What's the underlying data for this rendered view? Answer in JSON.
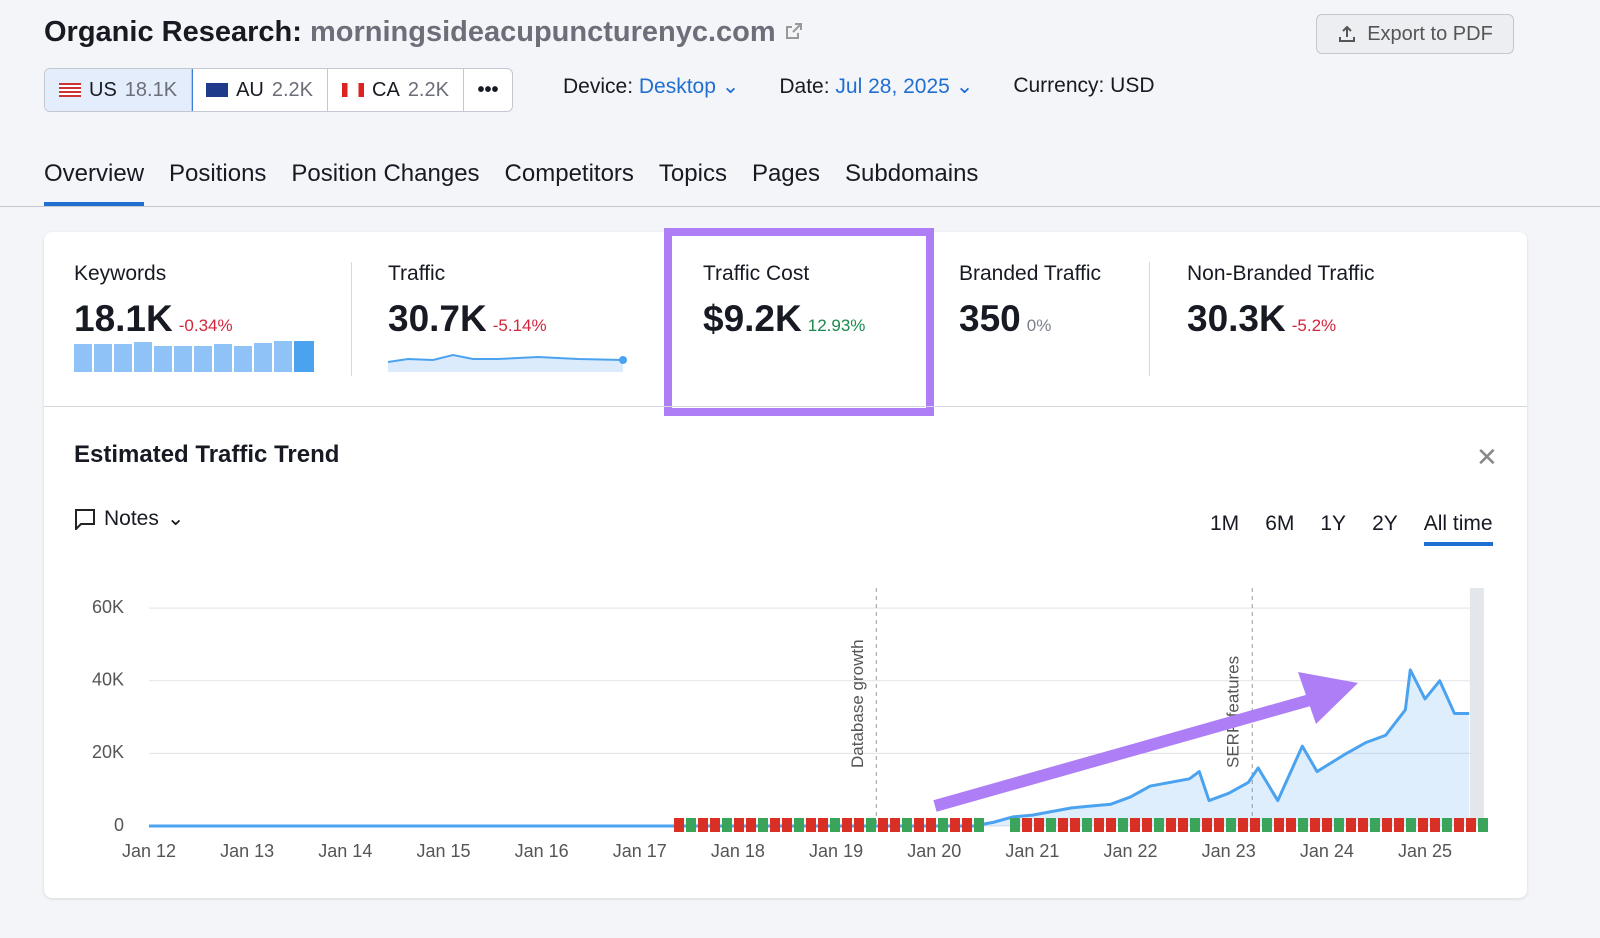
{
  "header": {
    "title": "Organic Research:",
    "domain": "morningsideacupuncturenyc.com",
    "export": "Export to PDF"
  },
  "databases": [
    {
      "code": "US",
      "count": "18.1K"
    },
    {
      "code": "AU",
      "count": "2.2K"
    },
    {
      "code": "CA",
      "count": "2.2K"
    }
  ],
  "filters": {
    "device_label": "Device:",
    "device": "Desktop",
    "date_label": "Date:",
    "date": "Jul 28, 2025",
    "currency": "Currency: USD"
  },
  "tabs": [
    "Overview",
    "Positions",
    "Position Changes",
    "Competitors",
    "Topics",
    "Pages",
    "Subdomains"
  ],
  "metrics": [
    {
      "label": "Keywords",
      "value": "18.1K",
      "change": "-0.34%"
    },
    {
      "label": "Traffic",
      "value": "30.7K",
      "change": "-5.14%"
    },
    {
      "label": "Traffic Cost",
      "value": "$9.2K",
      "change": "12.93%"
    },
    {
      "label": "Branded Traffic",
      "value": "350",
      "change": "0%"
    },
    {
      "label": "Non-Branded Traffic",
      "value": "30.3K",
      "change": "-5.2%"
    }
  ],
  "chart_data": {
    "type": "line",
    "title": "Estimated Traffic Trend",
    "notes": "Notes",
    "periods": [
      "1M",
      "6M",
      "1Y",
      "2Y",
      "All time"
    ],
    "x": [
      12,
      20.4,
      20.6,
      20.8,
      21.0,
      21.2,
      21.4,
      21.6,
      21.8,
      22.0,
      22.2,
      22.4,
      22.6,
      22.7,
      22.8,
      23.0,
      23.2,
      23.3,
      23.5,
      23.75,
      23.9,
      24.2,
      24.4,
      24.6,
      24.8,
      24.85,
      25.0,
      25.15,
      25.3,
      25.45
    ],
    "values": [
      0,
      0,
      1000,
      2500,
      3000,
      4000,
      5000,
      5500,
      6000,
      8000,
      11000,
      12000,
      13000,
      15000,
      7000,
      9000,
      12000,
      16000,
      7000,
      22000,
      15000,
      20000,
      23000,
      25000,
      32000,
      43000,
      35000,
      40000,
      31000,
      31000
    ],
    "color": "#4ba3f0",
    "xlim": [
      12,
      25.6
    ],
    "ylim": [
      0,
      65000
    ],
    "xticks": [
      {
        "value": 12,
        "label": "Jan 12"
      },
      {
        "value": 13,
        "label": "Jan 13"
      },
      {
        "value": 14,
        "label": "Jan 14"
      },
      {
        "value": 15,
        "label": "Jan 15"
      },
      {
        "value": 16,
        "label": "Jan 16"
      },
      {
        "value": 17,
        "label": "Jan 17"
      },
      {
        "value": 18,
        "label": "Jan 18"
      },
      {
        "value": 19,
        "label": "Jan 19"
      },
      {
        "value": 20,
        "label": "Jan 20"
      },
      {
        "value": 21,
        "label": "Jan 21"
      },
      {
        "value": 22,
        "label": "Jan 22"
      },
      {
        "value": 23,
        "label": "Jan 23"
      },
      {
        "value": 24,
        "label": "Jan 24"
      },
      {
        "value": 25,
        "label": "Jan 25"
      }
    ],
    "yticks": [
      0,
      {
        "value": 20000,
        "label": "20K"
      },
      {
        "value": 40000,
        "label": "40K"
      },
      {
        "value": 60000,
        "label": "60K"
      }
    ],
    "grid": true,
    "annotations": [
      {
        "x": 19.41,
        "label": "Database growth"
      },
      {
        "x": 23.24,
        "label": "SERP features"
      }
    ]
  }
}
